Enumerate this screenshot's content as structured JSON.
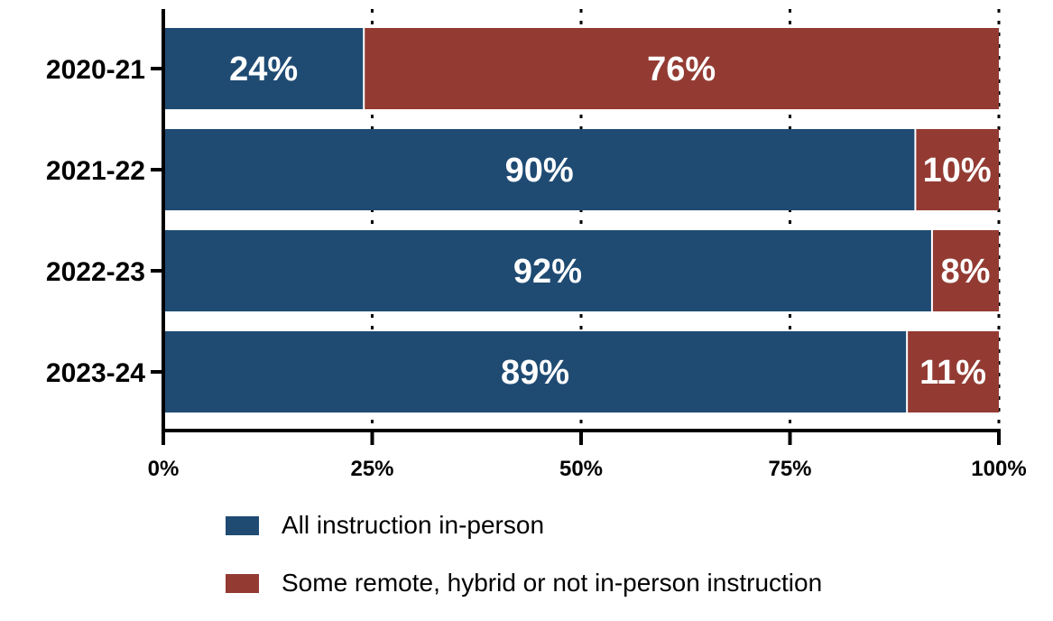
{
  "chart_data": {
    "type": "bar",
    "orientation": "horizontal",
    "stacked": true,
    "normalized_percent": true,
    "categories": [
      "2020-21",
      "2021-22",
      "2022-23",
      "2023-24"
    ],
    "series": [
      {
        "name": "All instruction in-person",
        "color": "#1f4b73",
        "values": [
          24,
          90,
          92,
          89
        ]
      },
      {
        "name": "Some remote, hybrid or not in-person instruction",
        "color": "#933b33",
        "values": [
          76,
          10,
          8,
          11
        ]
      }
    ],
    "data_labels": [
      [
        "24%",
        "90%",
        "92%",
        "89%"
      ],
      [
        "76%",
        "10%",
        "8%",
        "11%"
      ]
    ],
    "x_ticks": [
      "0%",
      "25%",
      "50%",
      "75%",
      "100%"
    ],
    "xlim": [
      0,
      100
    ],
    "title": "",
    "xlabel": "",
    "ylabel": "",
    "grid": "dotted vertical lines at 25%, 50%, 75%, 100%",
    "legend_position": "bottom"
  }
}
